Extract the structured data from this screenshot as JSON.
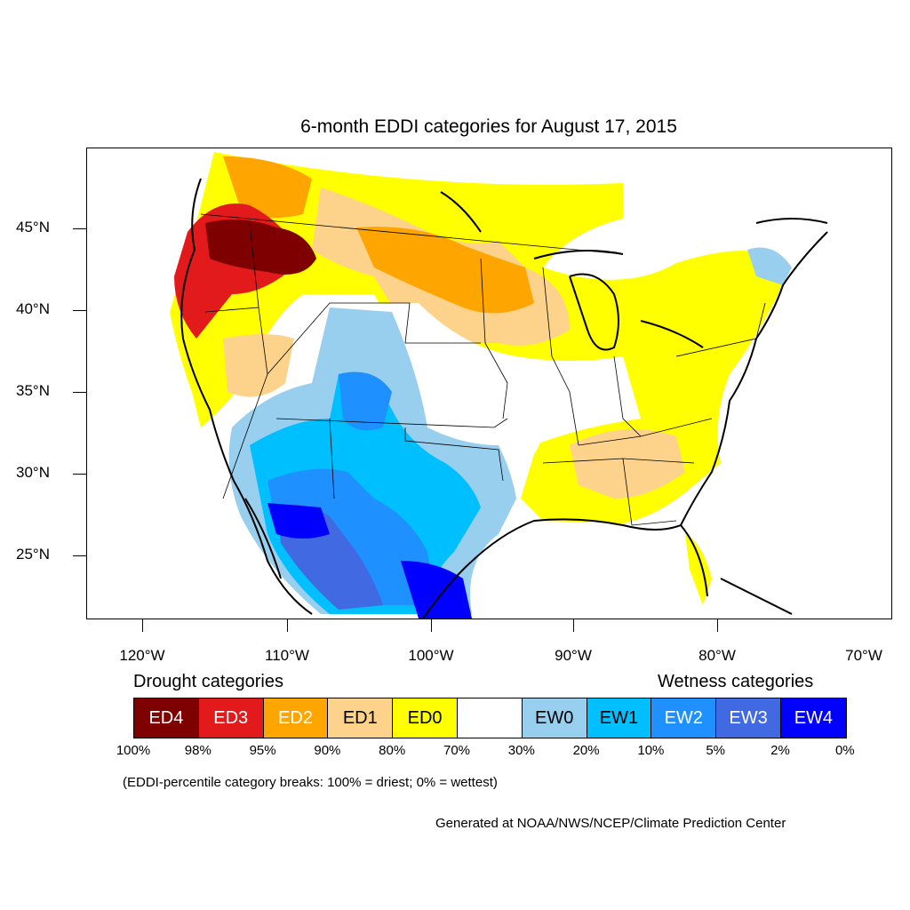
{
  "title": "6-month EDDI categories for August 17, 2015",
  "lat_labels": [
    "45°N",
    "40°N",
    "35°N",
    "30°N",
    "25°N"
  ],
  "lon_labels": [
    "120°W",
    "110°W",
    "100°W",
    "90°W",
    "80°W",
    "70°W"
  ],
  "legend": {
    "drought_heading": "Drought categories",
    "wetness_heading": "Wetness categories",
    "categories": [
      {
        "label": "ED4",
        "color": "#7f0000",
        "text_color": "#ffffff"
      },
      {
        "label": "ED3",
        "color": "#e31a1c",
        "text_color": "#ffffff"
      },
      {
        "label": "ED2",
        "color": "#ffa500",
        "text_color": "#ffffff"
      },
      {
        "label": "ED1",
        "color": "#fdd28a",
        "text_color": "#000000"
      },
      {
        "label": "ED0",
        "color": "#ffff00",
        "text_color": "#000000"
      },
      {
        "label": "",
        "color": "#ffffff",
        "text_color": "#000000"
      },
      {
        "label": "EW0",
        "color": "#99cfee",
        "text_color": "#000000"
      },
      {
        "label": "EW1",
        "color": "#00bfff",
        "text_color": "#000000"
      },
      {
        "label": "EW2",
        "color": "#1e90ff",
        "text_color": "#ffffff"
      },
      {
        "label": "EW3",
        "color": "#4169e1",
        "text_color": "#ffffff"
      },
      {
        "label": "EW4",
        "color": "#0000ff",
        "text_color": "#ffffff"
      }
    ],
    "breaks": [
      "100%",
      "98%",
      "95%",
      "90%",
      "80%",
      "70%",
      "30%",
      "20%",
      "10%",
      "5%",
      "2%",
      "0%"
    ]
  },
  "note": "(EDDI-percentile category breaks: 100% = driest; 0% = wettest)",
  "credit": "Generated at NOAA/NWS/NCEP/Climate Prediction Center"
}
